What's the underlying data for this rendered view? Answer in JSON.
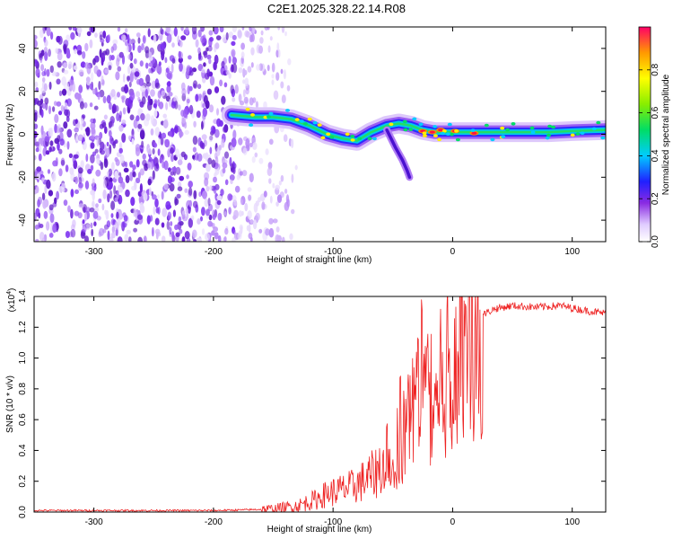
{
  "title": "C2E1.2025.328.22.14.R08",
  "chart_data": [
    {
      "type": "heatmap",
      "name": "spectrogram",
      "xlabel": "Height of straight line (km)",
      "ylabel": "Frequency (Hz)",
      "xlim": [
        -350,
        128
      ],
      "ylim": [
        -50,
        50
      ],
      "xticks": [
        -300,
        -200,
        -100,
        0,
        100
      ],
      "yticks": [
        -40,
        -20,
        0,
        20,
        40
      ],
      "xtick_labels": [
        "-300",
        "-200",
        "-100",
        "0",
        "100"
      ],
      "ytick_labels": [
        "-40",
        "-20",
        "0",
        "20",
        "40"
      ],
      "noise_region_km": [
        -350,
        -140
      ],
      "signal_track": {
        "x": [
          -185,
          -165,
          -150,
          -135,
          -120,
          -105,
          -92,
          -80,
          -68,
          -55,
          -45,
          -35,
          -25,
          -15,
          -5,
          5,
          20,
          40,
          60,
          80,
          100,
          128
        ],
        "y": [
          9,
          8,
          8,
          7,
          4,
          0,
          -2,
          -3,
          1,
          4,
          5,
          4,
          2,
          1,
          1,
          1,
          1,
          1,
          1,
          1,
          1.5,
          2
        ]
      },
      "colorbar": {
        "label": "Normalized spectral amplitude",
        "range": [
          0,
          1
        ],
        "ticks": [
          0.0,
          0.2,
          0.4,
          0.6,
          0.8
        ],
        "tick_labels": [
          "0.0",
          "0.2",
          "0.4",
          "0.6",
          "0.8"
        ]
      }
    },
    {
      "type": "line",
      "name": "snr",
      "xlabel": "Height of straight line (km)",
      "ylabel": "SNR (10 * v/v)",
      "scale_label": "(x10",
      "scale_exp": "4",
      "scale_close": ")",
      "xlim": [
        -350,
        128
      ],
      "ylim": [
        0,
        1.4
      ],
      "xticks": [
        -300,
        -200,
        -100,
        0,
        100
      ],
      "yticks": [
        0.0,
        0.2,
        0.4,
        0.6,
        0.8,
        1.0,
        1.2,
        1.4
      ],
      "xtick_labels": [
        "-300",
        "-200",
        "-100",
        "0",
        "100"
      ],
      "ytick_labels": [
        "0.0",
        "0.2",
        "0.4",
        "0.6",
        "0.8",
        "1.0",
        "1.2",
        "1.4"
      ],
      "series": [
        {
          "name": "SNR",
          "color": "#ee2222",
          "x": [
            -350,
            -300,
            -250,
            -200,
            -170,
            -150,
            -130,
            -115,
            -105,
            -95,
            -85,
            -75,
            -65,
            -55,
            -45,
            -38,
            -32,
            -26,
            -20,
            -14,
            -8,
            -2,
            5,
            12,
            18,
            25,
            35,
            50,
            70,
            90,
            110,
            128
          ],
          "y": [
            0.01,
            0.01,
            0.01,
            0.01,
            0.015,
            0.02,
            0.04,
            0.08,
            0.12,
            0.14,
            0.16,
            0.2,
            0.25,
            0.35,
            0.45,
            0.55,
            0.75,
            0.85,
            0.7,
            0.75,
            0.85,
            1.0,
            1.05,
            1.15,
            1.2,
            1.28,
            1.32,
            1.34,
            1.33,
            1.34,
            1.31,
            1.29
          ]
        }
      ]
    }
  ]
}
